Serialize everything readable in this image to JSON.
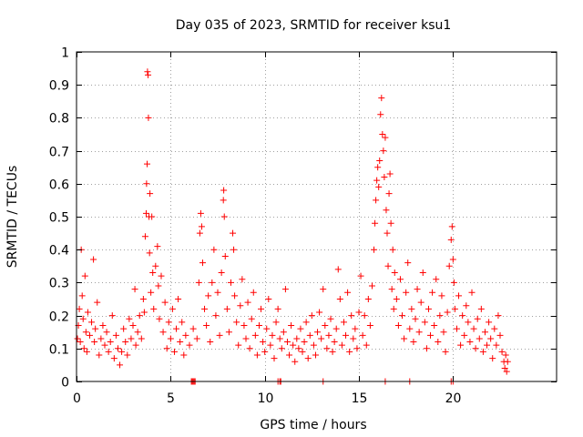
{
  "chart_data": {
    "type": "scatter",
    "title": "Day 035 of 2023, SRMTID for receiver ksu1",
    "xlabel": "GPS time / hours",
    "ylabel": "SRMTID / TECUs",
    "xlim": [
      0,
      25.5
    ],
    "ylim": [
      0,
      1
    ],
    "grid": true,
    "legend": "none",
    "marker": "+",
    "color": "#ff0000",
    "x_ticks": [
      0,
      5,
      10,
      15,
      20
    ],
    "x_tick_labels": [
      "0",
      "5",
      "10",
      "15",
      "20"
    ],
    "y_ticks": [
      0,
      0.1,
      0.2,
      0.3,
      0.4,
      0.5,
      0.6,
      0.7,
      0.8,
      0.9,
      1
    ],
    "y_tick_labels": [
      "0",
      "0.1",
      "0.2",
      "0.3",
      "0.4",
      "0.5",
      "0.6",
      "0.7",
      "0.8",
      "0.9",
      "1"
    ],
    "series": [
      {
        "name": "SRMTID ksu1",
        "points": [
          [
            0.05,
            0.13
          ],
          [
            0.1,
            0.17
          ],
          [
            0.15,
            0.22
          ],
          [
            0.2,
            0.12
          ],
          [
            0.25,
            0.4
          ],
          [
            0.3,
            0.26
          ],
          [
            0.35,
            0.19
          ],
          [
            0.4,
            0.1
          ],
          [
            0.45,
            0.32
          ],
          [
            0.5,
            0.15
          ],
          [
            0.55,
            0.09
          ],
          [
            0.6,
            0.21
          ],
          [
            0.7,
            0.14
          ],
          [
            0.8,
            0.18
          ],
          [
            0.9,
            0.37
          ],
          [
            0.95,
            0.12
          ],
          [
            1.0,
            0.16
          ],
          [
            1.1,
            0.24
          ],
          [
            1.2,
            0.08
          ],
          [
            1.3,
            0.13
          ],
          [
            1.4,
            0.17
          ],
          [
            1.5,
            0.11
          ],
          [
            1.6,
            0.15
          ],
          [
            1.7,
            0.09
          ],
          [
            1.8,
            0.12
          ],
          [
            1.9,
            0.2
          ],
          [
            2.0,
            0.07
          ],
          [
            2.1,
            0.14
          ],
          [
            2.2,
            0.1
          ],
          [
            2.3,
            0.05
          ],
          [
            2.4,
            0.09
          ],
          [
            2.5,
            0.16
          ],
          [
            2.6,
            0.12
          ],
          [
            2.7,
            0.08
          ],
          [
            2.8,
            0.19
          ],
          [
            2.9,
            0.13
          ],
          [
            3.0,
            0.17
          ],
          [
            3.1,
            0.28
          ],
          [
            3.15,
            0.11
          ],
          [
            3.25,
            0.15
          ],
          [
            3.35,
            0.2
          ],
          [
            3.45,
            0.13
          ],
          [
            3.55,
            0.25
          ],
          [
            3.6,
            0.21
          ],
          [
            3.65,
            0.44
          ],
          [
            3.7,
            0.51
          ],
          [
            3.72,
            0.6
          ],
          [
            3.75,
            0.66
          ],
          [
            3.77,
            0.94
          ],
          [
            3.8,
            0.93
          ],
          [
            3.82,
            0.8
          ],
          [
            3.85,
            0.5
          ],
          [
            3.88,
            0.39
          ],
          [
            3.9,
            0.57
          ],
          [
            3.95,
            0.27
          ],
          [
            4.0,
            0.5
          ],
          [
            4.05,
            0.33
          ],
          [
            4.1,
            0.22
          ],
          [
            4.2,
            0.35
          ],
          [
            4.3,
            0.41
          ],
          [
            4.35,
            0.29
          ],
          [
            4.4,
            0.19
          ],
          [
            4.5,
            0.32
          ],
          [
            4.6,
            0.15
          ],
          [
            4.7,
            0.24
          ],
          [
            4.8,
            0.1
          ],
          [
            4.9,
            0.18
          ],
          [
            5.0,
            0.13
          ],
          [
            5.1,
            0.22
          ],
          [
            5.2,
            0.09
          ],
          [
            5.3,
            0.16
          ],
          [
            5.4,
            0.25
          ],
          [
            5.5,
            0.12
          ],
          [
            5.6,
            0.18
          ],
          [
            5.7,
            0.08
          ],
          [
            5.8,
            0.14
          ],
          [
            6.0,
            0.11
          ],
          [
            6.2,
            0.16
          ],
          [
            6.4,
            0.13
          ],
          [
            6.5,
            0.3
          ],
          [
            6.55,
            0.45
          ],
          [
            6.6,
            0.51
          ],
          [
            6.65,
            0.47
          ],
          [
            6.7,
            0.36
          ],
          [
            6.8,
            0.22
          ],
          [
            6.9,
            0.17
          ],
          [
            7.0,
            0.26
          ],
          [
            7.1,
            0.12
          ],
          [
            7.2,
            0.3
          ],
          [
            7.3,
            0.4
          ],
          [
            7.4,
            0.2
          ],
          [
            7.5,
            0.27
          ],
          [
            7.6,
            0.14
          ],
          [
            7.7,
            0.33
          ],
          [
            7.8,
            0.55
          ],
          [
            7.82,
            0.58
          ],
          [
            7.85,
            0.5
          ],
          [
            7.9,
            0.38
          ],
          [
            8.0,
            0.22
          ],
          [
            8.1,
            0.15
          ],
          [
            8.2,
            0.3
          ],
          [
            8.3,
            0.45
          ],
          [
            8.35,
            0.4
          ],
          [
            8.4,
            0.26
          ],
          [
            8.5,
            0.18
          ],
          [
            8.6,
            0.11
          ],
          [
            8.7,
            0.23
          ],
          [
            8.8,
            0.31
          ],
          [
            8.9,
            0.17
          ],
          [
            9.0,
            0.13
          ],
          [
            9.1,
            0.24
          ],
          [
            9.2,
            0.1
          ],
          [
            9.3,
            0.19
          ],
          [
            9.4,
            0.27
          ],
          [
            9.5,
            0.14
          ],
          [
            9.6,
            0.08
          ],
          [
            9.7,
            0.17
          ],
          [
            9.8,
            0.22
          ],
          [
            9.9,
            0.12
          ],
          [
            10.0,
            0.09
          ],
          [
            10.1,
            0.16
          ],
          [
            10.2,
            0.25
          ],
          [
            10.3,
            0.11
          ],
          [
            10.4,
            0.14
          ],
          [
            10.5,
            0.07
          ],
          [
            10.6,
            0.18
          ],
          [
            10.7,
            0.22
          ],
          [
            10.8,
            0.13
          ],
          [
            10.9,
            0.1
          ],
          [
            11.0,
            0.15
          ],
          [
            11.1,
            0.28
          ],
          [
            11.2,
            0.12
          ],
          [
            11.3,
            0.08
          ],
          [
            11.4,
            0.17
          ],
          [
            11.5,
            0.11
          ],
          [
            11.6,
            0.06
          ],
          [
            11.7,
            0.13
          ],
          [
            11.8,
            0.1
          ],
          [
            11.9,
            0.16
          ],
          [
            12.0,
            0.09
          ],
          [
            12.1,
            0.12
          ],
          [
            12.2,
            0.18
          ],
          [
            12.3,
            0.07
          ],
          [
            12.4,
            0.14
          ],
          [
            12.5,
            0.2
          ],
          [
            12.6,
            0.11
          ],
          [
            12.7,
            0.08
          ],
          [
            12.8,
            0.15
          ],
          [
            12.9,
            0.21
          ],
          [
            13.0,
            0.13
          ],
          [
            13.1,
            0.28
          ],
          [
            13.2,
            0.17
          ],
          [
            13.3,
            0.1
          ],
          [
            13.4,
            0.14
          ],
          [
            13.5,
            0.19
          ],
          [
            13.6,
            0.09
          ],
          [
            13.7,
            0.12
          ],
          [
            13.8,
            0.16
          ],
          [
            13.9,
            0.34
          ],
          [
            14.0,
            0.25
          ],
          [
            14.1,
            0.11
          ],
          [
            14.2,
            0.18
          ],
          [
            14.3,
            0.14
          ],
          [
            14.4,
            0.27
          ],
          [
            14.5,
            0.09
          ],
          [
            14.6,
            0.2
          ],
          [
            14.7,
            0.13
          ],
          [
            14.8,
            0.16
          ],
          [
            14.9,
            0.1
          ],
          [
            15.0,
            0.21
          ],
          [
            15.1,
            0.32
          ],
          [
            15.2,
            0.14
          ],
          [
            15.3,
            0.2
          ],
          [
            15.4,
            0.11
          ],
          [
            15.5,
            0.25
          ],
          [
            15.6,
            0.17
          ],
          [
            15.7,
            0.29
          ],
          [
            15.8,
            0.4
          ],
          [
            15.85,
            0.48
          ],
          [
            15.9,
            0.55
          ],
          [
            15.95,
            0.61
          ],
          [
            16.0,
            0.65
          ],
          [
            16.05,
            0.59
          ],
          [
            16.1,
            0.67
          ],
          [
            16.15,
            0.81
          ],
          [
            16.2,
            0.86
          ],
          [
            16.25,
            0.75
          ],
          [
            16.3,
            0.7
          ],
          [
            16.35,
            0.62
          ],
          [
            16.4,
            0.74
          ],
          [
            16.45,
            0.52
          ],
          [
            16.5,
            0.45
          ],
          [
            16.55,
            0.35
          ],
          [
            16.6,
            0.57
          ],
          [
            16.65,
            0.63
          ],
          [
            16.7,
            0.48
          ],
          [
            16.75,
            0.28
          ],
          [
            16.8,
            0.4
          ],
          [
            16.85,
            0.22
          ],
          [
            16.9,
            0.33
          ],
          [
            17.0,
            0.25
          ],
          [
            17.1,
            0.17
          ],
          [
            17.2,
            0.31
          ],
          [
            17.3,
            0.2
          ],
          [
            17.4,
            0.13
          ],
          [
            17.5,
            0.27
          ],
          [
            17.6,
            0.36
          ],
          [
            17.7,
            0.16
          ],
          [
            17.8,
            0.22
          ],
          [
            17.9,
            0.12
          ],
          [
            18.0,
            0.19
          ],
          [
            18.1,
            0.28
          ],
          [
            18.2,
            0.15
          ],
          [
            18.3,
            0.24
          ],
          [
            18.4,
            0.33
          ],
          [
            18.5,
            0.18
          ],
          [
            18.6,
            0.1
          ],
          [
            18.7,
            0.22
          ],
          [
            18.8,
            0.14
          ],
          [
            18.9,
            0.27
          ],
          [
            19.0,
            0.17
          ],
          [
            19.1,
            0.31
          ],
          [
            19.2,
            0.12
          ],
          [
            19.3,
            0.2
          ],
          [
            19.4,
            0.26
          ],
          [
            19.5,
            0.15
          ],
          [
            19.6,
            0.09
          ],
          [
            19.7,
            0.21
          ],
          [
            19.8,
            0.35
          ],
          [
            19.9,
            0.43
          ],
          [
            19.95,
            0.47
          ],
          [
            20.0,
            0.37
          ],
          [
            20.05,
            0.3
          ],
          [
            20.1,
            0.22
          ],
          [
            20.2,
            0.16
          ],
          [
            20.3,
            0.26
          ],
          [
            20.4,
            0.11
          ],
          [
            20.5,
            0.2
          ],
          [
            20.6,
            0.14
          ],
          [
            20.7,
            0.23
          ],
          [
            20.8,
            0.18
          ],
          [
            20.9,
            0.12
          ],
          [
            21.0,
            0.27
          ],
          [
            21.1,
            0.16
          ],
          [
            21.2,
            0.1
          ],
          [
            21.3,
            0.19
          ],
          [
            21.4,
            0.13
          ],
          [
            21.5,
            0.22
          ],
          [
            21.6,
            0.09
          ],
          [
            21.7,
            0.15
          ],
          [
            21.8,
            0.11
          ],
          [
            21.9,
            0.18
          ],
          [
            22.0,
            0.13
          ],
          [
            22.1,
            0.07
          ],
          [
            22.2,
            0.16
          ],
          [
            22.3,
            0.11
          ],
          [
            22.4,
            0.2
          ],
          [
            22.5,
            0.14
          ],
          [
            22.6,
            0.09
          ],
          [
            22.7,
            0.06
          ],
          [
            22.75,
            0.04
          ],
          [
            22.8,
            0.08
          ],
          [
            22.85,
            0.03
          ],
          [
            22.9,
            0.06
          ],
          [
            6.1,
            0
          ],
          [
            6.15,
            0
          ],
          [
            6.2,
            0
          ],
          [
            6.25,
            0
          ],
          [
            6.3,
            0
          ],
          [
            10.7,
            0
          ],
          [
            10.8,
            0
          ],
          [
            10.85,
            0
          ],
          [
            13.1,
            0
          ],
          [
            16.4,
            0
          ],
          [
            17.7,
            0
          ],
          [
            19.9,
            0
          ],
          [
            20.0,
            0
          ]
        ]
      }
    ]
  }
}
